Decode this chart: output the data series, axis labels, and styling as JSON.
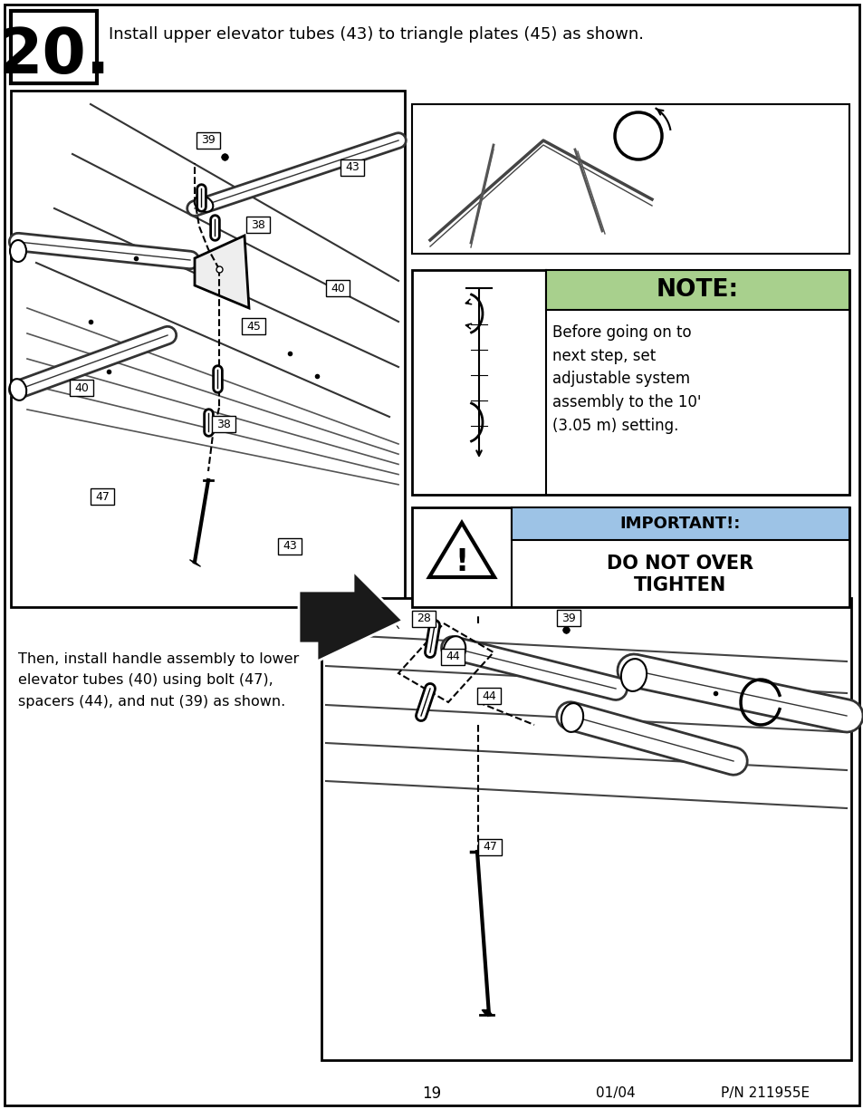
{
  "page_bg": "#ffffff",
  "step_number": "20.",
  "step_instruction": "Install upper elevator tubes (43) to triangle plates (45) as shown.",
  "note_title": "NOTE:",
  "note_title_bg": "#a8d08d",
  "note_body": "Before going on to\nnext step, set\nadjustable system\nassembly to the 10'\n(3.05 m) setting.",
  "important_title": "IMPORTANT!:",
  "important_title_bg": "#9dc3e6",
  "important_body_line1": "DO NOT OVER",
  "important_body_line2": "TIGHTEN",
  "bottom_text": "Then, install handle assembly to lower\nelevator tubes (40) using bolt (47),\nspacers (44), and nut (39) as shown.",
  "page_number": "19",
  "date_code": "01/04",
  "part_number": "P/N 211955E",
  "fig_width": 9.54,
  "fig_height": 12.35
}
